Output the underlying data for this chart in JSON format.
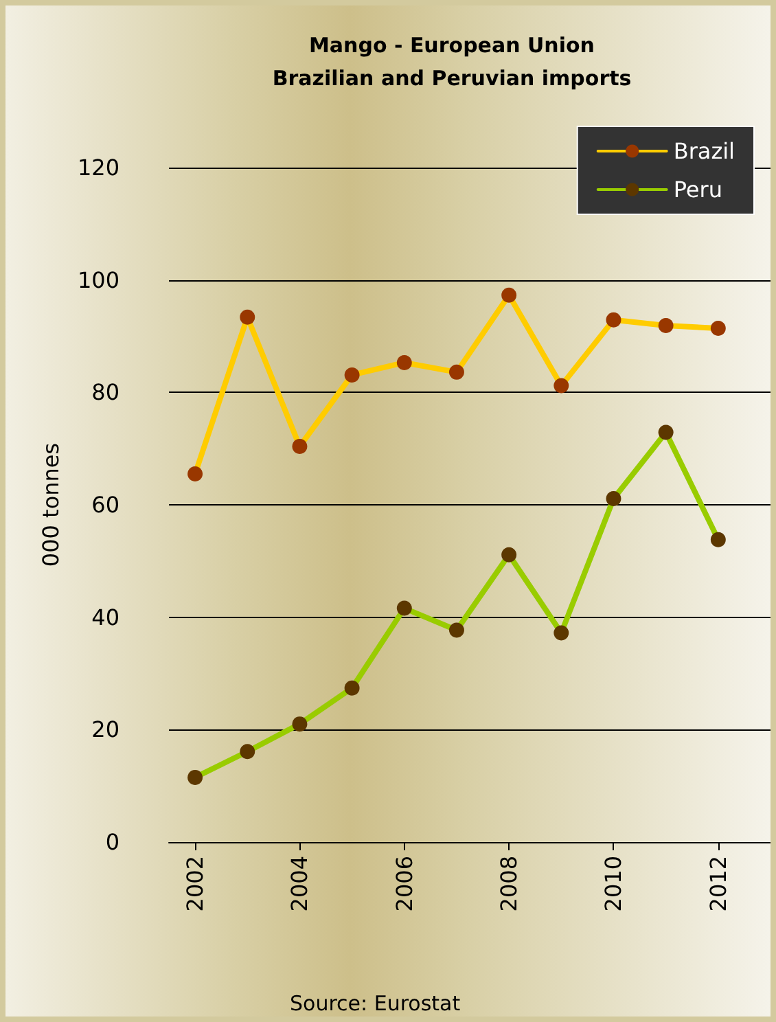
{
  "chart_data": {
    "type": "line",
    "title": "Mango - European Union\nBrazilian and Peruvian imports",
    "ylabel": "000 tonnes",
    "x": [
      2002,
      2003,
      2004,
      2005,
      2006,
      2007,
      2008,
      2009,
      2010,
      2011,
      2012
    ],
    "series": [
      {
        "name": "Brazil",
        "color": "#ffcc00",
        "values": [
          65.5,
          93.4,
          70.4,
          83.1,
          85.3,
          83.6,
          97.3,
          81.2,
          92.9,
          91.9,
          91.4
        ]
      },
      {
        "name": "Peru",
        "color": "#99cc00",
        "values": [
          11.5,
          16.1,
          21.0,
          27.4,
          41.6,
          37.7,
          51.1,
          37.2,
          61.1,
          72.9,
          53.8
        ]
      }
    ],
    "xlim": [
      2001.5,
      2013
    ],
    "xticks": [
      2002,
      2004,
      2006,
      2008,
      2010,
      2012
    ],
    "ylim": [
      0,
      120
    ],
    "yticks": [
      0,
      20,
      40,
      60,
      80,
      100,
      120
    ],
    "grid": "y",
    "legend": "top right",
    "marker": "circle",
    "line_style": "solid",
    "annotations": [
      "Source: Eurostat"
    ]
  }
}
